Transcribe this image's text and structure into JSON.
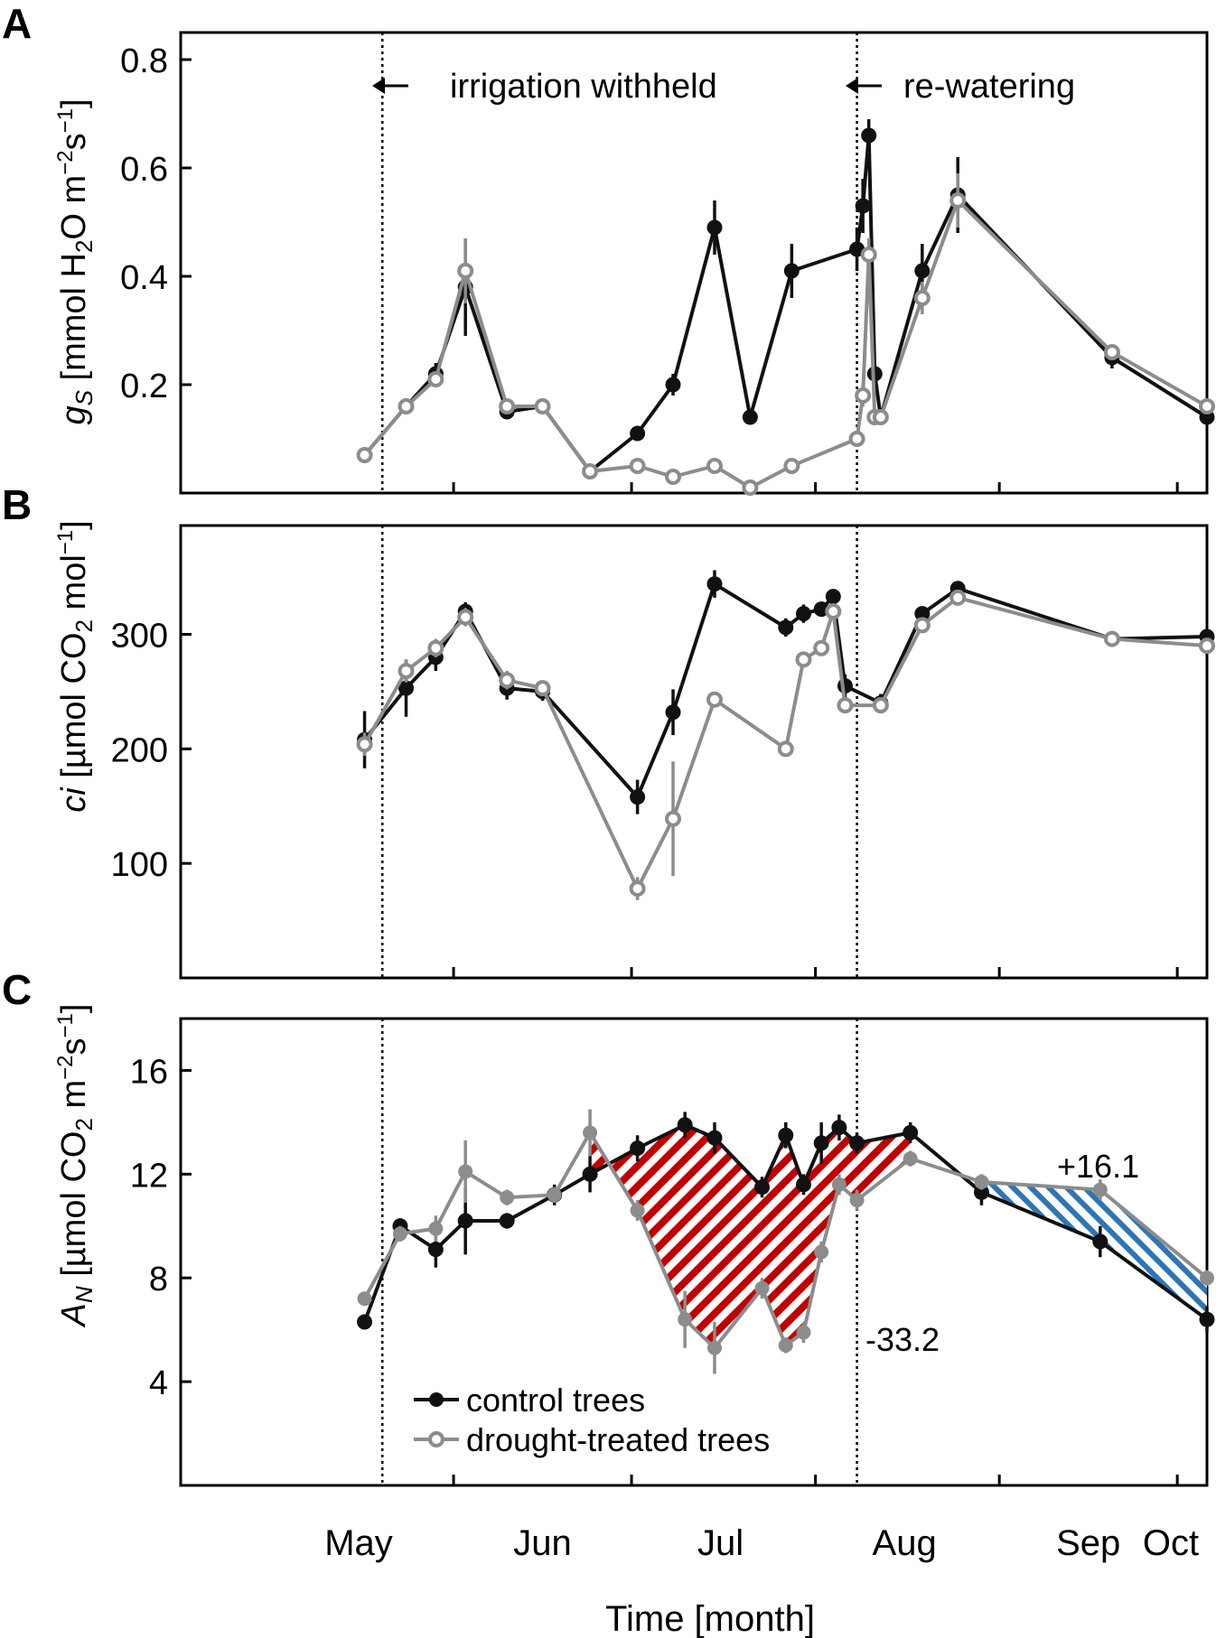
{
  "figure": {
    "xlabel": "Time [month]",
    "months": [
      "May",
      "Jun",
      "Jul",
      "Aug",
      "Sep",
      "Oct"
    ],
    "events": [
      {
        "label": "irrigation withheld",
        "day": 19
      },
      {
        "label": "re-watering",
        "day": 99
      }
    ],
    "legend": {
      "control": "control trees",
      "drought": "drought-treated trees"
    },
    "colors": {
      "control": "#111111",
      "drought": "#8c8c8c",
      "deficit": "#c00000",
      "surplus": "#2e75b6"
    }
  },
  "chart_data": [
    {
      "type": "line",
      "panel": "A",
      "ylabel": "g_S [mmol H2O m^-2 s^-1]",
      "ylabel_parts": {
        "italic": "g",
        "sub": "S",
        "pre": " [mmol H",
        "sub2": "2",
        "mid": "O m",
        "sup1": "−2",
        "s": "s",
        "sup2": "−1",
        "end": "]"
      },
      "ylim": [
        0.0,
        0.85
      ],
      "yticks": [
        "0.2",
        "0.4",
        "0.6",
        "0.8"
      ],
      "ytick_values": [
        0.2,
        0.4,
        0.6,
        0.8
      ],
      "series": [
        {
          "name": "control trees",
          "x": [
            16,
            23,
            28,
            33,
            40,
            46,
            54,
            62,
            68,
            75,
            81,
            88,
            99,
            100,
            101,
            102,
            103,
            110,
            116,
            142,
            158
          ],
          "values": [
            0.07,
            0.16,
            0.22,
            0.38,
            0.15,
            0.16,
            0.04,
            0.11,
            0.2,
            0.49,
            0.14,
            0.41,
            0.45,
            0.53,
            0.66,
            0.22,
            0.14,
            0.41,
            0.55,
            0.25,
            0.14
          ],
          "errors": [
            0,
            0.01,
            0.02,
            0.09,
            0.01,
            0.01,
            0,
            0.01,
            0.02,
            0.05,
            0.01,
            0.05,
            0.04,
            0.05,
            0.03,
            0.01,
            0,
            0.05,
            0.07,
            0.02,
            0.01
          ]
        },
        {
          "name": "drought-treated trees",
          "x": [
            16,
            23,
            28,
            33,
            40,
            46,
            54,
            62,
            68,
            75,
            81,
            88,
            99,
            100,
            101,
            102,
            103,
            110,
            116,
            142,
            158
          ],
          "values": [
            0.07,
            0.16,
            0.21,
            0.41,
            0.16,
            0.16,
            0.04,
            0.05,
            0.03,
            0.05,
            0.01,
            0.05,
            0.1,
            0.18,
            0.44,
            0.14,
            0.14,
            0.36,
            0.54,
            0.26,
            0.16
          ],
          "errors": [
            0,
            0.01,
            0.01,
            0.06,
            0.01,
            0.01,
            0,
            0,
            0,
            0,
            0,
            0,
            0.01,
            0.02,
            0.03,
            0.01,
            0,
            0.03,
            0.05,
            0.01,
            0.01
          ]
        }
      ]
    },
    {
      "type": "line",
      "panel": "B",
      "ylabel": "ci [µmol CO2 mol^-1]",
      "ylabel_parts": {
        "italic": "ci",
        "pre": " [µmol CO",
        "sub": "2",
        "mid": " mol",
        "sup": "−1",
        "end": "]"
      },
      "ylim": [
        0,
        395
      ],
      "yticks": [
        "100",
        "200",
        "300"
      ],
      "ytick_values": [
        100,
        200,
        300
      ],
      "series": [
        {
          "name": "control trees",
          "x": [
            16,
            23,
            28,
            33,
            40,
            46,
            62,
            68,
            75,
            87,
            90,
            93,
            95,
            97,
            103,
            110,
            116,
            142,
            158
          ],
          "values": [
            208,
            253,
            280,
            320,
            253,
            250,
            158,
            232,
            344,
            306,
            318,
            322,
            333,
            255,
            240,
            318,
            340,
            296,
            298
          ],
          "errors": [
            25,
            25,
            12,
            8,
            10,
            8,
            15,
            20,
            12,
            8,
            8,
            6,
            6,
            10,
            8,
            6,
            6,
            5,
            5
          ]
        },
        {
          "name": "drought-treated trees",
          "x": [
            16,
            23,
            28,
            33,
            40,
            46,
            62,
            68,
            75,
            87,
            90,
            93,
            95,
            97,
            103,
            110,
            116,
            142,
            158
          ],
          "values": [
            204,
            268,
            288,
            315,
            260,
            253,
            78,
            139,
            243,
            200,
            278,
            288,
            320,
            238,
            238,
            308,
            332,
            296,
            290
          ],
          "errors": [
            10,
            10,
            8,
            8,
            8,
            6,
            10,
            50,
            6,
            6,
            6,
            6,
            6,
            6,
            6,
            6,
            6,
            5,
            5
          ]
        }
      ]
    },
    {
      "type": "line",
      "panel": "C",
      "ylabel": "A_N [µmol CO2 m^-2 s^-1]",
      "ylabel_parts": {
        "italic": "A",
        "sub": "N",
        "pre": " [µmol CO",
        "sub2": "2",
        "mid": " m",
        "sup1": "−2",
        "s": "s",
        "sup2": "−1",
        "end": "]"
      },
      "ylim": [
        0,
        18
      ],
      "yticks": [
        "4",
        "8",
        "12",
        "16"
      ],
      "ytick_values": [
        4,
        8,
        12,
        16
      ],
      "annotations": [
        {
          "text": "-33.2",
          "region": "deficit"
        },
        {
          "text": "+16.1",
          "region": "surplus"
        }
      ],
      "series": [
        {
          "name": "control trees",
          "x": [
            16,
            22,
            28,
            33,
            40,
            48,
            54,
            62,
            70,
            75,
            83,
            87,
            90,
            93,
            96,
            99,
            108,
            120,
            140,
            158
          ],
          "values": [
            6.3,
            10.0,
            9.1,
            10.2,
            10.2,
            11.2,
            12.0,
            13.0,
            13.9,
            13.4,
            11.5,
            13.5,
            11.6,
            13.2,
            13.8,
            13.2,
            13.6,
            11.3,
            9.4,
            6.4
          ],
          "errors": [
            0,
            0.3,
            0.7,
            1.3,
            0.3,
            0.4,
            0.7,
            0.5,
            0.5,
            0.6,
            0.4,
            0.5,
            0.4,
            0.8,
            0.5,
            0.4,
            0.4,
            0.5,
            0.6,
            0.5
          ]
        },
        {
          "name": "drought-treated trees",
          "x": [
            16,
            22,
            28,
            33,
            40,
            48,
            54,
            62,
            70,
            75,
            83,
            87,
            90,
            93,
            96,
            99,
            108,
            120,
            140,
            158
          ],
          "values": [
            7.2,
            9.7,
            9.9,
            12.1,
            11.1,
            11.2,
            13.6,
            10.6,
            6.4,
            5.3,
            7.6,
            5.4,
            5.9,
            9.0,
            11.6,
            11.0,
            12.6,
            11.7,
            11.4,
            8.0
          ],
          "errors": [
            0,
            0.3,
            0.5,
            1.2,
            0.3,
            0.3,
            0.9,
            0.4,
            1.1,
            1.0,
            0.4,
            0.3,
            0.4,
            0.4,
            0.4,
            0.4,
            0.3,
            0.3,
            0.4,
            0.3
          ]
        }
      ]
    }
  ]
}
